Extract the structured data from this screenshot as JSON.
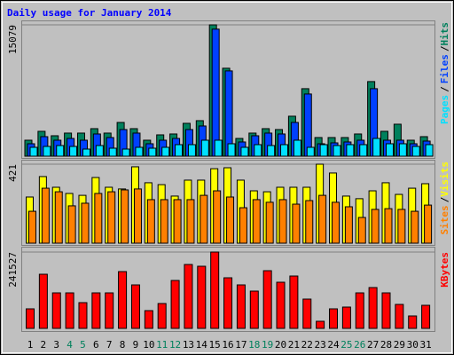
{
  "chart_data": [
    {
      "type": "bar",
      "title": "Daily usage for January 2014",
      "ylim": [
        0,
        15079
      ],
      "yticks": [
        15079
      ],
      "legend_separator": "/",
      "series": [
        {
          "name": "Hits",
          "color": "#00805c",
          "values": [
            1836,
            2856,
            2346,
            2652,
            2652,
            3162,
            2652,
            3876,
            3162,
            1836,
            2448,
            2550,
            3774,
            4080,
            15079,
            10098,
            2040,
            2652,
            3162,
            3060,
            4590,
            7752,
            2142,
            2142,
            2142,
            2550,
            8568,
            2856,
            3672,
            1836,
            2244
          ]
        },
        {
          "name": "Files",
          "color": "#0040ff",
          "values": [
            1428,
            2244,
            1836,
            2040,
            1836,
            2550,
            2142,
            3060,
            2652,
            1428,
            1836,
            2040,
            3060,
            3468,
            14586,
            9792,
            1632,
            2346,
            2652,
            2550,
            3876,
            7140,
            1428,
            1530,
            1632,
            1836,
            7752,
            1836,
            1836,
            1428,
            1734
          ]
        },
        {
          "name": "Pages",
          "color": "#00e0ff",
          "values": [
            1020,
            1122,
            1224,
            1122,
            816,
            1224,
            918,
            816,
            1020,
            918,
            1020,
            1326,
            1326,
            1836,
            1836,
            1428,
            1020,
            1326,
            1224,
            1326,
            1836,
            1020,
            1326,
            1224,
            1326,
            1326,
            2040,
            1428,
            1428,
            1122,
            1326
          ]
        }
      ]
    },
    {
      "type": "bar",
      "ylim": [
        0,
        421
      ],
      "yticks": [
        421
      ],
      "legend_separator": "/",
      "series": [
        {
          "name": "Visits",
          "color": "#ffff00",
          "values": [
            246,
            355,
            298,
            265,
            255,
            350,
            298,
            289,
            407,
            322,
            312,
            251,
            336,
            336,
            397,
            402,
            336,
            279,
            274,
            298,
            298,
            298,
            421,
            374,
            251,
            237,
            279,
            322,
            260,
            293,
            317
          ]
        },
        {
          "name": "Sites",
          "color": "#ff8000",
          "values": [
            170,
            293,
            274,
            199,
            213,
            265,
            274,
            284,
            289,
            232,
            232,
            232,
            232,
            255,
            279,
            246,
            189,
            232,
            218,
            232,
            208,
            227,
            255,
            218,
            194,
            137,
            180,
            184,
            180,
            170,
            203
          ]
        }
      ]
    },
    {
      "type": "bar",
      "ylim": [
        0,
        241527
      ],
      "yticks": [
        241527
      ],
      "categories": [
        "1",
        "2",
        "3",
        "4",
        "5",
        "6",
        "7",
        "8",
        "9",
        "10",
        "11",
        "12",
        "13",
        "14",
        "15",
        "16",
        "17",
        "18",
        "19",
        "20",
        "21",
        "22",
        "23",
        "24",
        "25",
        "26",
        "27",
        "28",
        "29",
        "30",
        "31"
      ],
      "category_colors": [
        "#000000",
        "#000000",
        "#000000",
        "#00805c",
        "#00805c",
        "#000000",
        "#000000",
        "#000000",
        "#000000",
        "#000000",
        "#00805c",
        "#00805c",
        "#000000",
        "#000000",
        "#000000",
        "#000000",
        "#000000",
        "#00805c",
        "#00805c",
        "#000000",
        "#000000",
        "#000000",
        "#000000",
        "#000000",
        "#00805c",
        "#00805c",
        "#000000",
        "#000000",
        "#000000",
        "#000000",
        "#000000"
      ],
      "series": [
        {
          "name": "KBytes",
          "color": "#ff0000",
          "values": [
            61776,
            171288,
            112320,
            112320,
            81432,
            112320,
            112320,
            179712,
            137592,
            56160,
            78624,
            151632,
            202176,
            196560,
            241527,
            160056,
            137592,
            117936,
            182520,
            146016,
            165672,
            92664,
            22464,
            61776,
            67392,
            112320,
            129168,
            112320,
            75816,
            39312,
            73008
          ]
        }
      ]
    }
  ]
}
